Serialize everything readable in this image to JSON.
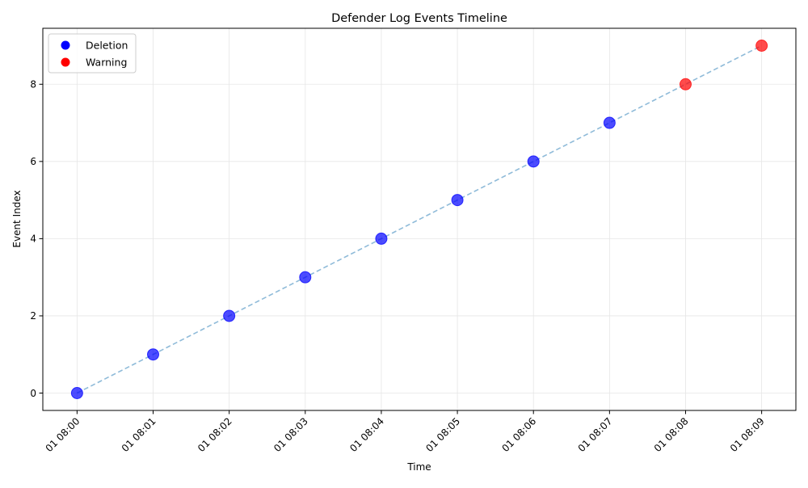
{
  "chart_data": {
    "type": "scatter",
    "title": "Defender Log Events Timeline",
    "xlabel": "Time",
    "ylabel": "Event Index",
    "x": [
      "01 08:00",
      "01 08:01",
      "01 08:02",
      "01 08:03",
      "01 08:04",
      "01 08:05",
      "01 08:06",
      "01 08:07",
      "01 08:08",
      "01 08:09"
    ],
    "y": [
      0,
      1,
      2,
      3,
      4,
      5,
      6,
      7,
      8,
      9
    ],
    "event_types": [
      "Deletion",
      "Deletion",
      "Deletion",
      "Deletion",
      "Deletion",
      "Deletion",
      "Deletion",
      "Deletion",
      "Warning",
      "Warning"
    ],
    "legend": [
      {
        "label": "Deletion",
        "color": "#0000ff"
      },
      {
        "label": "Warning",
        "color": "#ff0000"
      }
    ],
    "legend_position": "upper-left",
    "line": {
      "style": "dashed",
      "color": "#1f77b4"
    },
    "x_ticks": [
      "01 08:00",
      "01 08:01",
      "01 08:02",
      "01 08:03",
      "01 08:04",
      "01 08:05",
      "01 08:06",
      "01 08:07",
      "01 08:08",
      "01 08:09"
    ],
    "y_ticks": [
      0,
      2,
      4,
      6,
      8
    ],
    "ylim": [
      -0.45,
      9.45
    ],
    "grid": true
  }
}
